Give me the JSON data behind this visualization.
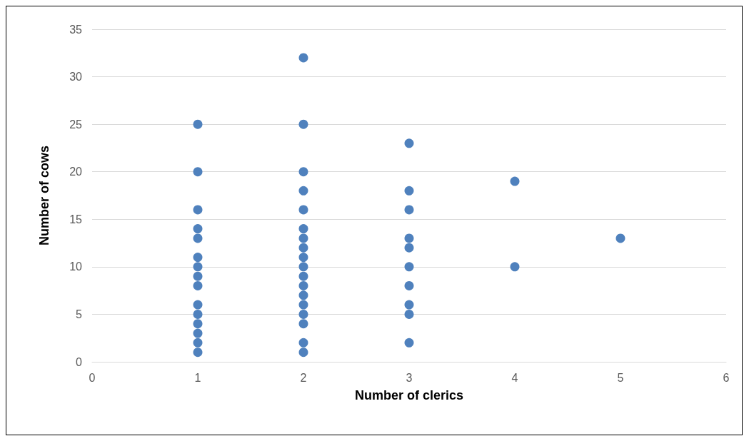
{
  "chart_data": {
    "type": "scatter",
    "xlabel": "Number of clerics",
    "ylabel": "Number of cows",
    "x": [
      1,
      1,
      1,
      1,
      1,
      1,
      1,
      1,
      1,
      1,
      1,
      1,
      1,
      1,
      1,
      2,
      2,
      2,
      2,
      2,
      2,
      2,
      2,
      2,
      2,
      2,
      2,
      2,
      2,
      2,
      2,
      2,
      2,
      3,
      3,
      3,
      3,
      3,
      3,
      3,
      3,
      3,
      3,
      4,
      4,
      5
    ],
    "series": [
      {
        "color": "#4f81bd",
        "values": [
          25,
          20,
          16,
          14,
          13,
          11,
          10,
          9,
          8,
          6,
          5,
          4,
          3,
          2,
          1,
          32,
          25,
          20,
          18,
          16,
          14,
          13,
          12,
          11,
          10,
          9,
          8,
          7,
          6,
          5,
          4,
          2,
          1,
          23,
          18,
          16,
          13,
          12,
          10,
          8,
          6,
          5,
          2,
          19,
          10,
          13
        ]
      }
    ],
    "xlim": [
      0,
      6
    ],
    "xticks": [
      0,
      1,
      2,
      3,
      4,
      5,
      6
    ],
    "ylim": [
      0,
      35
    ],
    "yticks": [
      0,
      5,
      10,
      15,
      20,
      25,
      30,
      35
    ],
    "grid": "y",
    "marker": "circle"
  }
}
